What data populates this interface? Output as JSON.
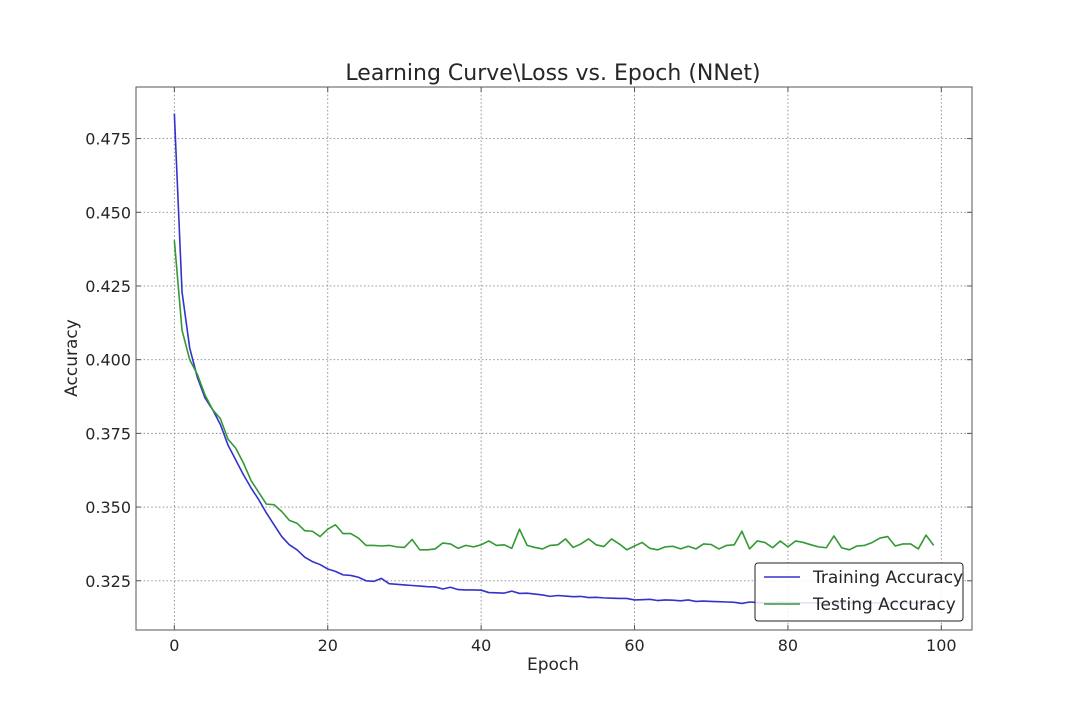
{
  "chart_data": {
    "type": "line",
    "title": "Learning Curve\\Loss vs. Epoch (NNet)",
    "xlabel": "Epoch",
    "ylabel": "Accuracy",
    "xlim": [
      -5,
      104
    ],
    "ylim": [
      0.3083,
      0.4925
    ],
    "xticks": [
      0,
      20,
      40,
      60,
      80,
      100
    ],
    "yticks": [
      0.325,
      0.35,
      0.375,
      0.4,
      0.425,
      0.45,
      0.475
    ],
    "ytick_labels": [
      "0.325",
      "0.350",
      "0.375",
      "0.400",
      "0.425",
      "0.450",
      "0.475"
    ],
    "grid": true,
    "legend_position": "lower-right",
    "series": [
      {
        "name": "Training Accuracy",
        "color": "#3333cc",
        "x_start": 0,
        "values": [
          0.4835,
          0.423,
          0.404,
          0.394,
          0.387,
          0.383,
          0.378,
          0.371,
          0.366,
          0.361,
          0.3565,
          0.3525,
          0.348,
          0.344,
          0.34,
          0.3372,
          0.3355,
          0.333,
          0.3315,
          0.3305,
          0.329,
          0.3282,
          0.327,
          0.3268,
          0.3262,
          0.325,
          0.3248,
          0.3258,
          0.324,
          0.3238,
          0.3236,
          0.3234,
          0.3232,
          0.323,
          0.3229,
          0.3222,
          0.3228,
          0.322,
          0.3219,
          0.3219,
          0.3218,
          0.321,
          0.3209,
          0.3208,
          0.3215,
          0.3207,
          0.3208,
          0.3205,
          0.3202,
          0.3197,
          0.32,
          0.3198,
          0.3196,
          0.3197,
          0.3193,
          0.3194,
          0.3192,
          0.3191,
          0.319,
          0.319,
          0.3185,
          0.3186,
          0.3187,
          0.3183,
          0.3185,
          0.3184,
          0.3182,
          0.3185,
          0.318,
          0.3181,
          0.318,
          0.3179,
          0.3178,
          0.3177,
          0.3173,
          0.3178,
          0.3176,
          0.3175,
          0.3175,
          0.3177,
          0.3176,
          0.3176,
          0.3175,
          0.3175,
          0.3175,
          0.3175,
          0.3175,
          0.3175,
          0.3175,
          0.3175,
          0.3175,
          0.3175,
          0.3175,
          0.3175,
          0.3175,
          0.3175,
          0.3175,
          0.3175,
          0.3175,
          0.3175
        ]
      },
      {
        "name": "Testing Accuracy",
        "color": "#339933",
        "x_start": 0,
        "values": [
          0.4405,
          0.41,
          0.4,
          0.395,
          0.388,
          0.383,
          0.38,
          0.373,
          0.37,
          0.365,
          0.359,
          0.355,
          0.351,
          0.3508,
          0.3485,
          0.3455,
          0.3445,
          0.342,
          0.3418,
          0.34,
          0.3425,
          0.344,
          0.341,
          0.341,
          0.3395,
          0.337,
          0.337,
          0.3368,
          0.337,
          0.3365,
          0.3363,
          0.339,
          0.3355,
          0.3355,
          0.3358,
          0.3378,
          0.3375,
          0.336,
          0.337,
          0.3365,
          0.3372,
          0.3385,
          0.337,
          0.3372,
          0.336,
          0.3425,
          0.337,
          0.3363,
          0.3358,
          0.337,
          0.3372,
          0.3392,
          0.3363,
          0.3375,
          0.3392,
          0.3372,
          0.3366,
          0.3392,
          0.3375,
          0.3355,
          0.3368,
          0.338,
          0.336,
          0.3355,
          0.3365,
          0.3367,
          0.3358,
          0.3367,
          0.3358,
          0.3375,
          0.3373,
          0.3358,
          0.337,
          0.3372,
          0.3418,
          0.3358,
          0.3385,
          0.338,
          0.3362,
          0.3385,
          0.3365,
          0.3385,
          0.338,
          0.3372,
          0.3365,
          0.3362,
          0.3402,
          0.3362,
          0.3355,
          0.3368,
          0.337,
          0.338,
          0.3395,
          0.34,
          0.3368,
          0.3375,
          0.3375,
          0.3358,
          0.3405,
          0.337
        ]
      }
    ]
  }
}
